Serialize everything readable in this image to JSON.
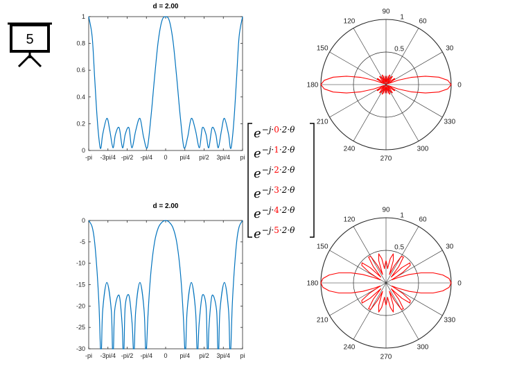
{
  "slide_badge": {
    "number": "5"
  },
  "matrix": {
    "rows": [
      {
        "base": "e",
        "lead": "−j·",
        "index": "0",
        "tail": "·2·θ"
      },
      {
        "base": "e",
        "lead": "−j·",
        "index": "1",
        "tail": "·2·θ"
      },
      {
        "base": "e",
        "lead": "−j·",
        "index": "2",
        "tail": "·2·θ"
      },
      {
        "base": "e",
        "lead": "−j·",
        "index": "3",
        "tail": "·2·θ"
      },
      {
        "base": "e",
        "lead": "−j·",
        "index": "4",
        "tail": "·2·θ"
      },
      {
        "base": "e",
        "lead": "−j·",
        "index": "5",
        "tail": "·2·θ"
      }
    ],
    "index_color": "#ff0000"
  },
  "chart_data": [
    {
      "type": "line",
      "title": "d = 2.00",
      "xlabel": "",
      "ylabel": "",
      "xlim": [
        -3.14159,
        3.14159
      ],
      "ylim": [
        0,
        1
      ],
      "x_ticks": [
        {
          "value": -3.14159,
          "label": "-pi"
        },
        {
          "value": -2.35619,
          "label": "-3pi/4"
        },
        {
          "value": -1.5708,
          "label": "-pi/2"
        },
        {
          "value": -0.7854,
          "label": "-pi/4"
        },
        {
          "value": 0,
          "label": "0"
        },
        {
          "value": 0.7854,
          "label": "pi/4"
        },
        {
          "value": 1.5708,
          "label": "pi/2"
        },
        {
          "value": 2.35619,
          "label": "3pi/4"
        },
        {
          "value": 3.14159,
          "label": "pi"
        }
      ],
      "y_ticks": [
        {
          "value": 0,
          "label": "0"
        },
        {
          "value": 0.2,
          "label": "0.2"
        },
        {
          "value": 0.4,
          "label": "0.4"
        },
        {
          "value": 0.6,
          "label": "0.6"
        },
        {
          "value": 0.8,
          "label": "0.8"
        },
        {
          "value": 1,
          "label": "1"
        }
      ],
      "series": [
        {
          "color": "#0072bd",
          "x": [
            -3.1416,
            -3.0,
            -2.9,
            -2.8,
            -2.7,
            -2.64,
            -2.57,
            -2.4,
            -2.28,
            -2.15,
            -2.05,
            -1.9,
            -1.76,
            -1.65,
            -1.5,
            -1.38,
            -1.22,
            -1.05,
            -0.9,
            -0.75,
            -0.6,
            -0.45,
            -0.3,
            -0.15,
            0,
            0.15,
            0.3,
            0.45,
            0.6,
            0.75,
            0.9,
            1.05,
            1.22,
            1.38,
            1.5,
            1.65,
            1.76,
            1.9,
            2.05,
            2.15,
            2.28,
            2.4,
            2.57,
            2.64,
            2.7,
            2.8,
            2.9,
            3.0,
            3.1416
          ],
          "y": [
            1.0,
            0.85,
            0.55,
            0.25,
            0.05,
            0.02,
            0.12,
            0.24,
            0.15,
            0.02,
            0.12,
            0.17,
            0.02,
            0.12,
            0.17,
            0.02,
            0.15,
            0.24,
            0.1,
            0.02,
            0.25,
            0.55,
            0.82,
            0.97,
            1.0,
            0.97,
            0.82,
            0.55,
            0.25,
            0.02,
            0.1,
            0.24,
            0.15,
            0.02,
            0.17,
            0.12,
            0.02,
            0.17,
            0.12,
            0.02,
            0.15,
            0.24,
            0.12,
            0.02,
            0.05,
            0.25,
            0.55,
            0.85,
            1.0
          ]
        }
      ],
      "grid": false,
      "legend": "none"
    },
    {
      "type": "line",
      "title": "d = 2.00",
      "xlabel": "",
      "ylabel": "",
      "xlim": [
        -3.14159,
        3.14159
      ],
      "ylim": [
        -30,
        0
      ],
      "x_ticks": [
        {
          "value": -3.14159,
          "label": "-pi"
        },
        {
          "value": -2.35619,
          "label": "-3pi/4"
        },
        {
          "value": -1.5708,
          "label": "-pi/2"
        },
        {
          "value": -0.7854,
          "label": "-pi/4"
        },
        {
          "value": 0,
          "label": "0"
        },
        {
          "value": 0.7854,
          "label": "pi/4"
        },
        {
          "value": 1.5708,
          "label": "pi/2"
        },
        {
          "value": 2.35619,
          "label": "3pi/4"
        },
        {
          "value": 3.14159,
          "label": "pi"
        }
      ],
      "y_ticks": [
        {
          "value": 0,
          "label": "0"
        },
        {
          "value": -5,
          "label": "-5"
        },
        {
          "value": -10,
          "label": "-10"
        },
        {
          "value": -15,
          "label": "-15"
        },
        {
          "value": -20,
          "label": "-20"
        },
        {
          "value": -25,
          "label": "-25"
        },
        {
          "value": -30,
          "label": "-30"
        }
      ],
      "series": [
        {
          "color": "#0072bd",
          "x": [
            -3.1416,
            -3.0,
            -2.9,
            -2.8,
            -2.72,
            -2.66,
            -2.62,
            -2.57,
            -2.4,
            -2.22,
            -2.17,
            -2.13,
            -2.08,
            -1.9,
            -1.78,
            -1.74,
            -1.7,
            -1.65,
            -1.5,
            -1.37,
            -1.32,
            -1.28,
            -1.22,
            -1.05,
            -0.88,
            -0.82,
            -0.78,
            -0.72,
            -0.6,
            -0.45,
            -0.3,
            -0.15,
            0,
            0.15,
            0.3,
            0.45,
            0.6,
            0.72,
            0.78,
            0.82,
            0.88,
            1.05,
            1.22,
            1.28,
            1.32,
            1.37,
            1.5,
            1.65,
            1.7,
            1.74,
            1.78,
            1.9,
            2.08,
            2.13,
            2.17,
            2.22,
            2.4,
            2.57,
            2.62,
            2.66,
            2.72,
            2.8,
            2.9,
            3.0,
            3.1416
          ],
          "y": [
            0,
            -1.5,
            -5,
            -12,
            -20,
            -30,
            -30,
            -21,
            -14.5,
            -21,
            -30,
            -30,
            -21,
            -17.5,
            -24,
            -30,
            -30,
            -20,
            -17.5,
            -24,
            -30,
            -30,
            -21,
            -14.5,
            -21,
            -30,
            -30,
            -22,
            -12,
            -5,
            -1.7,
            -0.4,
            0,
            -0.4,
            -1.7,
            -5,
            -12,
            -22,
            -30,
            -30,
            -21,
            -14.5,
            -21,
            -30,
            -30,
            -24,
            -17.5,
            -20,
            -30,
            -30,
            -24,
            -17.5,
            -21,
            -30,
            -30,
            -21,
            -14.5,
            -21,
            -30,
            -30,
            -20,
            -12,
            -5,
            -1.5,
            0
          ]
        }
      ],
      "grid": false,
      "legend": "none"
    },
    {
      "type": "polar",
      "rlim": [
        0,
        1
      ],
      "r_ticks": [
        {
          "value": 0.5,
          "label": "0.5"
        },
        {
          "value": 1,
          "label": "1"
        }
      ],
      "theta_ticks": [
        "0",
        "30",
        "60",
        "90",
        "120",
        "150",
        "180",
        "210",
        "240",
        "270",
        "300",
        "330"
      ],
      "series": [
        {
          "color": "#ff0000",
          "theta_deg": [
            0,
            4,
            8,
            12,
            16,
            20,
            24,
            28,
            32,
            36,
            40,
            44,
            48,
            52,
            56,
            60,
            64,
            68,
            72,
            76,
            80,
            84,
            88,
            90
          ],
          "r": [
            1.0,
            0.95,
            0.82,
            0.62,
            0.4,
            0.2,
            0.04,
            0.08,
            0.16,
            0.16,
            0.08,
            0.02,
            0.1,
            0.16,
            0.14,
            0.05,
            0.08,
            0.16,
            0.14,
            0.04,
            0.08,
            0.13,
            0.03,
            0.0
          ],
          "symmetry": "four-fold"
        }
      ],
      "grid": true,
      "legend": "none"
    },
    {
      "type": "polar",
      "rlim": [
        0,
        1
      ],
      "r_ticks": [
        {
          "value": 0.5,
          "label": "0.5"
        },
        {
          "value": 1,
          "label": "1"
        }
      ],
      "theta_ticks": [
        "0",
        "30",
        "60",
        "90",
        "120",
        "150",
        "180",
        "210",
        "240",
        "270",
        "300",
        "330"
      ],
      "series": [
        {
          "color": "#ff0000",
          "theta_deg": [
            0,
            4,
            8,
            12,
            16,
            20,
            24,
            28,
            32,
            36,
            40,
            44,
            48,
            52,
            56,
            60,
            64,
            68,
            72,
            76,
            80,
            84,
            88,
            90
          ],
          "r": [
            1.0,
            0.97,
            0.88,
            0.74,
            0.56,
            0.38,
            0.2,
            0.1,
            0.3,
            0.46,
            0.48,
            0.34,
            0.12,
            0.32,
            0.48,
            0.47,
            0.3,
            0.14,
            0.36,
            0.46,
            0.38,
            0.22,
            0.3,
            0.34
          ],
          "symmetry": "four-fold"
        }
      ],
      "grid": true,
      "legend": "none"
    }
  ]
}
